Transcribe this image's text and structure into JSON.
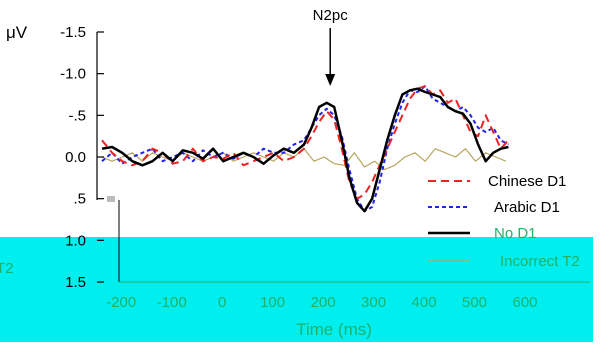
{
  "chart_data": {
    "type": "line",
    "y_unit": "μV",
    "xlabel": "Time (ms)",
    "xlim": [
      -240,
      600
    ],
    "ylim": [
      1.5,
      -1.5
    ],
    "y_reversed": true,
    "x_ticks": [
      -200,
      -100,
      0,
      100,
      200,
      300,
      400,
      500,
      600
    ],
    "y_ticks": [
      {
        "value": -1.5,
        "label": "-1.5"
      },
      {
        "value": -1.0,
        "label": "-1.0"
      },
      {
        "value": -0.5,
        "label": "-.5"
      },
      {
        "value": 0.0,
        "label": "0.0"
      },
      {
        "value": 0.5,
        "label": ".5"
      },
      {
        "value": 1.0,
        "label": "1.0"
      },
      {
        "value": 1.5,
        "label": "1.5"
      }
    ],
    "annotation": {
      "label": "N2pc",
      "x": 222,
      "y": -0.7
    },
    "edge_label": "T2",
    "legend_position": "lower-right",
    "overlay_color": "#00eeee",
    "series": [
      {
        "name": "Chinese D1",
        "color": "#ee2222",
        "dash": "8,5",
        "width": 2,
        "x": [
          -230,
          -210,
          -190,
          -170,
          -150,
          -130,
          -110,
          -90,
          -70,
          -50,
          -30,
          -10,
          10,
          30,
          50,
          70,
          90,
          110,
          130,
          150,
          170,
          185,
          200,
          215,
          230,
          245,
          260,
          275,
          290,
          305,
          320,
          335,
          350,
          365,
          380,
          395,
          410,
          425,
          440,
          455,
          470,
          485,
          500,
          515,
          530,
          545,
          560,
          575
        ],
        "y": [
          -0.2,
          -0.05,
          0.05,
          0.1,
          0.05,
          -0.1,
          -0.05,
          0.08,
          0.05,
          -0.1,
          0.05,
          0.0,
          0.02,
          -0.05,
          0.1,
          0.05,
          0.0,
          -0.05,
          0.05,
          0.0,
          -0.1,
          -0.25,
          -0.42,
          -0.55,
          -0.45,
          -0.1,
          0.3,
          0.5,
          0.45,
          0.3,
          0.1,
          -0.1,
          -0.3,
          -0.5,
          -0.7,
          -0.82,
          -0.85,
          -0.75,
          -0.8,
          -0.65,
          -0.7,
          -0.5,
          -0.3,
          -0.25,
          -0.5,
          -0.3,
          -0.1,
          -0.2
        ]
      },
      {
        "name": "Arabic D1",
        "color": "#2222ee",
        "dash": "4,3",
        "width": 2,
        "x": [
          -230,
          -210,
          -190,
          -170,
          -150,
          -130,
          -110,
          -90,
          -70,
          -50,
          -30,
          -10,
          10,
          30,
          50,
          70,
          90,
          110,
          130,
          150,
          170,
          185,
          200,
          215,
          230,
          245,
          260,
          275,
          290,
          305,
          320,
          335,
          350,
          365,
          380,
          395,
          410,
          425,
          440,
          455,
          470,
          485,
          500,
          515,
          530,
          545,
          560,
          575
        ],
        "y": [
          0.05,
          -0.05,
          0.08,
          0.0,
          -0.05,
          -0.1,
          0.05,
          0.0,
          -0.05,
          0.05,
          -0.08,
          0.0,
          -0.05,
          0.02,
          -0.05,
          0.0,
          -0.1,
          -0.05,
          -0.05,
          -0.15,
          -0.2,
          -0.35,
          -0.5,
          -0.58,
          -0.5,
          -0.25,
          0.15,
          0.5,
          0.65,
          0.6,
          0.3,
          -0.1,
          -0.4,
          -0.65,
          -0.8,
          -0.78,
          -0.85,
          -0.7,
          -0.65,
          -0.6,
          -0.55,
          -0.6,
          -0.5,
          -0.35,
          -0.3,
          -0.35,
          -0.2,
          -0.15
        ]
      },
      {
        "name": "No D1",
        "color": "#000000",
        "dash": "",
        "width": 2.5,
        "x": [
          -230,
          -210,
          -190,
          -170,
          -150,
          -130,
          -110,
          -90,
          -70,
          -50,
          -30,
          -10,
          10,
          30,
          50,
          70,
          90,
          110,
          130,
          150,
          170,
          185,
          200,
          215,
          230,
          245,
          260,
          275,
          290,
          305,
          320,
          335,
          350,
          365,
          380,
          395,
          410,
          425,
          440,
          455,
          470,
          485,
          500,
          515,
          530,
          545,
          560,
          575
        ],
        "y": [
          -0.1,
          -0.12,
          -0.05,
          0.05,
          0.1,
          0.05,
          -0.05,
          0.05,
          -0.08,
          -0.05,
          0.02,
          -0.1,
          0.05,
          0.0,
          -0.05,
          0.0,
          0.08,
          -0.02,
          -0.1,
          -0.05,
          -0.15,
          -0.35,
          -0.6,
          -0.65,
          -0.6,
          -0.2,
          0.25,
          0.55,
          0.65,
          0.5,
          0.15,
          -0.2,
          -0.5,
          -0.75,
          -0.8,
          -0.82,
          -0.78,
          -0.75,
          -0.72,
          -0.6,
          -0.55,
          -0.52,
          -0.4,
          -0.15,
          0.05,
          -0.05,
          -0.1,
          -0.12
        ]
      },
      {
        "name": "Incorrect T2",
        "color": "#b8a560",
        "dash": "",
        "width": 1.2,
        "x": [
          -230,
          -210,
          -190,
          -170,
          -150,
          -130,
          -110,
          -90,
          -70,
          -50,
          -30,
          -10,
          10,
          30,
          50,
          70,
          90,
          110,
          130,
          150,
          170,
          190,
          210,
          230,
          250,
          270,
          290,
          310,
          330,
          350,
          370,
          390,
          410,
          430,
          450,
          470,
          490,
          510,
          530,
          550,
          570
        ],
        "y": [
          0.0,
          0.05,
          0.0,
          -0.05,
          0.05,
          -0.05,
          0.0,
          0.05,
          -0.05,
          0.0,
          0.05,
          0.0,
          -0.05,
          0.05,
          0.0,
          -0.05,
          0.0,
          0.05,
          -0.05,
          0.0,
          -0.1,
          0.05,
          0.0,
          0.08,
          0.1,
          -0.05,
          0.12,
          0.05,
          0.15,
          0.1,
          0.0,
          -0.05,
          0.05,
          -0.1,
          -0.05,
          0.0,
          -0.1,
          0.05,
          -0.05,
          0.0,
          0.05
        ]
      }
    ]
  }
}
